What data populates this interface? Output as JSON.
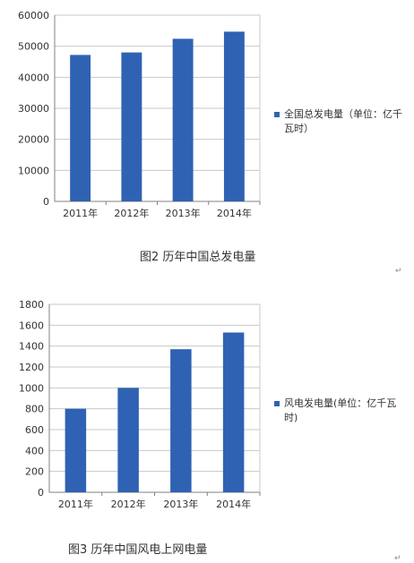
{
  "chart_data": [
    {
      "type": "bar",
      "categories": [
        "2011年",
        "2012年",
        "2013年",
        "2014年"
      ],
      "series": [
        {
          "name": "全国总发电量（单位：亿千瓦时）",
          "values": [
            47200,
            48000,
            52400,
            54700
          ]
        }
      ],
      "yticks": [
        "0",
        "10000",
        "20000",
        "30000",
        "40000",
        "50000",
        "60000"
      ],
      "ylim": [
        0,
        60000
      ],
      "grid": true,
      "legend": "right",
      "color": "#2f62b3"
    },
    {
      "type": "bar",
      "categories": [
        "2011年",
        "2012年",
        "2013年",
        "2014年"
      ],
      "series": [
        {
          "name": "风电发电量(单位：亿千瓦时)",
          "values": [
            800,
            1000,
            1370,
            1530
          ]
        }
      ],
      "yticks": [
        "0",
        "200",
        "400",
        "600",
        "800",
        "1000",
        "1200",
        "1400",
        "1600",
        "1800"
      ],
      "ylim": [
        0,
        1800
      ],
      "grid": true,
      "legend": "right",
      "color": "#2f62b3"
    }
  ],
  "captions": {
    "figure2": "图2  历年中国总发电量",
    "figure3": "图3  历年中国风电上网电量"
  },
  "paragraph_mark": "↵",
  "bar_color": "#2f62b3",
  "grid_color": "#c8c8c8",
  "axis_color": "#808080"
}
